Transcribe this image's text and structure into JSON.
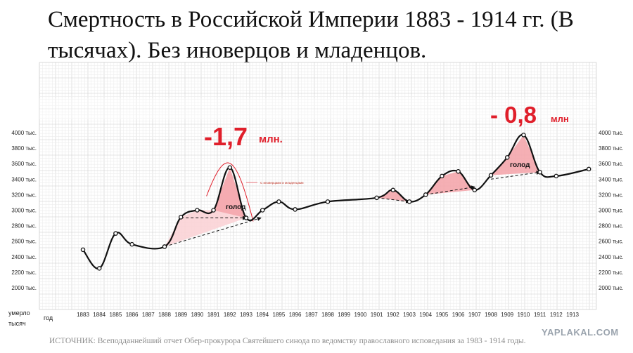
{
  "title": "Смертность в Российской Империи 1883 - 1914 гг. (В тысячах). Без иноверцов и младенцов.",
  "source": "ИСТОЧНИК: Всеподданнейший отчет Обер-прокурора Святейшего синода по ведомству православного исповедания за 1983 - 1914 годы.",
  "watermark": "YAPLAKAL.COM",
  "chart_data": {
    "type": "line",
    "title": "Смертность в Российской Империи 1883 - 1914 гг. (В тысячах). Без иноверцов и младенцов.",
    "xlabel": "год",
    "ylabel": "умерло тысяч",
    "ylim": [
      2000,
      4000
    ],
    "grid": true,
    "y_ticks": [
      "4000 тыс.",
      "3800 тыс.",
      "3600 тыс.",
      "3400 тыс.",
      "3200 тыс.",
      "3000 тыс.",
      "2800 тыс.",
      "2600 тыс.",
      "2400 тыс.",
      "2200 тыс.",
      "2000 тыс."
    ],
    "y_tick_values": [
      4000,
      3800,
      3600,
      3400,
      3200,
      3000,
      2800,
      2600,
      2400,
      2200,
      2000
    ],
    "y_ticks_right": [
      "4000 тыс.",
      "3800 тыс.",
      "3600 тыс.",
      "3400 тыс.",
      "3200 тыс.",
      "3000 тыс.",
      "2800 тыс.",
      "2600 тыс.",
      "2400 тыс.",
      "2200 тыс.",
      "2000 тыс."
    ],
    "categories": [
      "1883",
      "1884",
      "1885",
      "1886",
      "1887",
      "1888",
      "1889",
      "1890",
      "1891",
      "1892",
      "1893",
      "1894",
      "1895",
      "1896",
      "1897",
      "1898",
      "1899",
      "1900",
      "1901",
      "1902",
      "1903",
      "1904",
      "1905",
      "1906",
      "1907",
      "1908",
      "1909",
      "1910",
      "1911",
      "1912",
      "1913"
    ],
    "series": [
      {
        "points": [
          {
            "x": 1883,
            "y": 2490
          },
          {
            "x": 1884,
            "y": 2250
          },
          {
            "x": 1885,
            "y": 2700
          },
          {
            "x": 1886,
            "y": 2560
          },
          {
            "x": 1888,
            "y": 2530
          },
          {
            "x": 1889,
            "y": 2910
          },
          {
            "x": 1890,
            "y": 3000
          },
          {
            "x": 1891,
            "y": 3000
          },
          {
            "x": 1892,
            "y": 3550
          },
          {
            "x": 1893,
            "y": 2900
          },
          {
            "x": 1894,
            "y": 3000
          },
          {
            "x": 1895,
            "y": 3110
          },
          {
            "x": 1896,
            "y": 3010
          },
          {
            "x": 1898,
            "y": 3110
          },
          {
            "x": 1901,
            "y": 3160
          },
          {
            "x": 1902,
            "y": 3260
          },
          {
            "x": 1903,
            "y": 3110
          },
          {
            "x": 1904,
            "y": 3200
          },
          {
            "x": 1905,
            "y": 3440
          },
          {
            "x": 1906,
            "y": 3500
          },
          {
            "x": 1907,
            "y": 3260
          },
          {
            "x": 1908,
            "y": 3450
          },
          {
            "x": 1909,
            "y": 3680
          },
          {
            "x": 1910,
            "y": 3970
          },
          {
            "x": 1911,
            "y": 3490
          },
          {
            "x": 1912,
            "y": 3440
          },
          {
            "x": 1914,
            "y": 3530
          }
        ]
      }
    ],
    "annotations": {
      "famine_label": "голод",
      "excess_1892": "-1,7",
      "excess_1892_unit": "млн.",
      "excess_1911": "- 0,8",
      "excess_1911_unit": "млн",
      "small_note": "С иноверцами и младенцами"
    },
    "colors": {
      "line": "#111111",
      "annotation": "#e01f2b",
      "shade": "#f4a6ac",
      "shade_light": "#fbd3d6",
      "grid": "#d6d6d6"
    }
  }
}
